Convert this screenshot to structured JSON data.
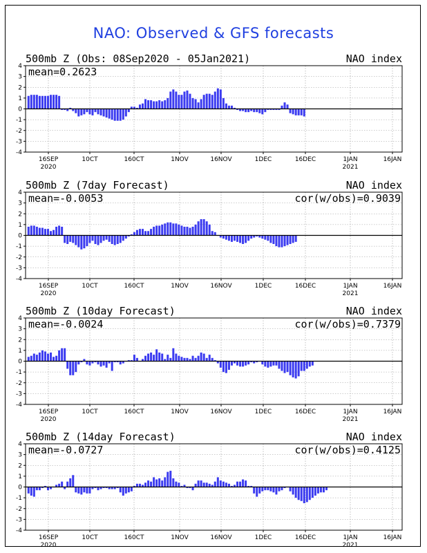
{
  "title": "NAO: Observed & GFS forecasts",
  "colors": {
    "bar": "#3b3bf0",
    "title": "#1f3fe0",
    "grid": "#9a9a9a",
    "axis": "#000000"
  },
  "chart_data": [
    {
      "type": "bar",
      "title": "500mb Z (Obs: 08Sep2020 - 05Jan2021)",
      "index_label": "NAO index",
      "mean_label": "mean=0.2623",
      "cor_label": "",
      "ylim": [
        -4,
        4
      ],
      "yticks": [
        "4",
        "3",
        "2",
        "1",
        "0",
        "-1",
        "-2",
        "-3",
        "-4"
      ],
      "xticks": [
        "16SEP",
        "10CT",
        "160CT",
        "1NOV",
        "16NOV",
        "1DEC",
        "16DEC",
        "1JAN",
        "16JAN"
      ],
      "xtick_years": {
        "0": "2020",
        "7": "2021"
      },
      "start_day": 0,
      "values": [
        1.2,
        1.3,
        1.3,
        1.3,
        1.2,
        1.2,
        1.2,
        1.2,
        1.3,
        1.3,
        1.3,
        1.2,
        -0.1,
        -0.1,
        -0.2,
        0.1,
        -0.2,
        -0.4,
        -0.7,
        -0.6,
        -0.5,
        -0.3,
        -0.5,
        -0.6,
        -0.3,
        -0.5,
        -0.6,
        -0.7,
        -0.8,
        -0.9,
        -1.0,
        -1.1,
        -1.1,
        -1.1,
        -1.0,
        -0.7,
        -0.3,
        0.2,
        0.2,
        0.1,
        0.4,
        0.5,
        0.9,
        0.8,
        0.8,
        0.7,
        0.7,
        0.8,
        0.7,
        0.8,
        1.0,
        1.6,
        1.8,
        1.6,
        1.3,
        1.3,
        1.6,
        1.7,
        1.4,
        1.0,
        0.9,
        0.6,
        0.9,
        1.3,
        1.4,
        1.4,
        1.3,
        1.6,
        1.9,
        1.8,
        1.0,
        0.5,
        0.3,
        0.3,
        0.1,
        -0.1,
        -0.2,
        -0.2,
        -0.3,
        -0.3,
        -0.2,
        -0.3,
        -0.3,
        -0.4,
        -0.5,
        -0.3,
        -0.1,
        -0.1,
        -0.1,
        -0.1,
        -0.1,
        0.3,
        0.6,
        0.4,
        -0.4,
        -0.5,
        -0.6,
        -0.6,
        -0.6,
        -0.7
      ]
    },
    {
      "type": "bar",
      "title": "500mb Z (7day Forecast)",
      "index_label": "NAO index",
      "mean_label": "mean=-0.0053",
      "cor_label": "cor(w/obs)=0.9039",
      "ylim": [
        -4,
        4
      ],
      "yticks": [
        "4",
        "3",
        "2",
        "1",
        "0",
        "-1",
        "-2",
        "-3",
        "-4"
      ],
      "xticks": [
        "16SEP",
        "10CT",
        "160CT",
        "1NOV",
        "16NOV",
        "1DEC",
        "16DEC",
        "1JAN",
        "16JAN"
      ],
      "xtick_years": {
        "0": "2020",
        "7": "2021"
      },
      "start_day": 0,
      "values": [
        0.8,
        0.9,
        0.9,
        0.8,
        0.7,
        0.7,
        0.6,
        0.6,
        0.4,
        0.5,
        0.8,
        0.9,
        0.8,
        -0.7,
        -0.8,
        -0.6,
        -0.7,
        -0.9,
        -1.1,
        -1.3,
        -1.2,
        -1.0,
        -0.7,
        -0.5,
        -0.8,
        -0.9,
        -0.7,
        -0.5,
        -0.4,
        -0.6,
        -0.8,
        -0.9,
        -0.8,
        -0.7,
        -0.5,
        -0.3,
        -0.1,
        0.1,
        0.3,
        0.5,
        0.6,
        0.6,
        0.4,
        0.4,
        0.6,
        0.8,
        0.9,
        0.9,
        1.0,
        1.1,
        1.2,
        1.2,
        1.1,
        1.1,
        1.0,
        0.9,
        0.8,
        0.8,
        0.7,
        0.8,
        1.0,
        1.3,
        1.5,
        1.5,
        1.3,
        1.0,
        0.4,
        0.3,
        0.0,
        -0.2,
        -0.3,
        -0.4,
        -0.5,
        -0.6,
        -0.5,
        -0.6,
        -0.7,
        -0.8,
        -0.7,
        -0.5,
        -0.3,
        -0.2,
        -0.1,
        -0.2,
        -0.3,
        -0.4,
        -0.5,
        -0.7,
        -0.8,
        -1.0,
        -1.1,
        -1.1,
        -1.0,
        -0.9,
        -0.8,
        -0.7,
        -0.6
      ]
    },
    {
      "type": "bar",
      "title": "500mb Z (10day Forecast)",
      "index_label": "NAO index",
      "mean_label": "mean=-0.0024",
      "cor_label": "cor(w/obs)=0.7379",
      "ylim": [
        -4,
        4
      ],
      "yticks": [
        "4",
        "3",
        "2",
        "1",
        "0",
        "-1",
        "-2",
        "-3",
        "-4"
      ],
      "xticks": [
        "16SEP",
        "10CT",
        "160CT",
        "1NOV",
        "16NOV",
        "1DEC",
        "16DEC",
        "1JAN",
        "16JAN"
      ],
      "xtick_years": {
        "0": "2020",
        "7": "2021"
      },
      "start_day": 0,
      "values": [
        0.4,
        0.5,
        0.7,
        0.6,
        0.8,
        1.0,
        0.9,
        0.7,
        0.8,
        0.4,
        0.5,
        1.0,
        1.2,
        1.2,
        -0.7,
        -1.3,
        -1.3,
        -1.0,
        -0.3,
        -0.1,
        0.2,
        -0.3,
        -0.4,
        -0.2,
        -0.1,
        -0.3,
        -0.5,
        -0.4,
        -0.6,
        -0.2,
        -0.9,
        -0.1,
        -0.1,
        -0.3,
        -0.2,
        0.0,
        0.1,
        0.1,
        0.6,
        0.3,
        0.0,
        0.2,
        0.5,
        0.7,
        0.8,
        0.6,
        1.1,
        0.8,
        0.7,
        0.2,
        0.6,
        0.3,
        1.2,
        0.7,
        0.5,
        0.4,
        0.3,
        0.3,
        0.2,
        0.5,
        0.3,
        0.5,
        0.8,
        0.7,
        0.3,
        0.6,
        0.3,
        0.1,
        -0.2,
        -0.6,
        -1.0,
        -1.1,
        -0.8,
        -0.4,
        -0.2,
        -0.4,
        -0.5,
        -0.5,
        -0.4,
        -0.3,
        -0.1,
        -0.2,
        -0.1,
        0.0,
        -0.3,
        -0.5,
        -0.6,
        -0.5,
        -0.4,
        -0.4,
        -0.7,
        -0.9,
        -1.1,
        -1.0,
        -1.3,
        -1.5,
        -1.6,
        -1.4,
        -0.9,
        -0.9,
        -0.7,
        -0.5,
        -0.4
      ]
    },
    {
      "type": "bar",
      "title": "500mb Z (14day Forecast)",
      "index_label": "NAO index",
      "mean_label": "mean=-0.0727",
      "cor_label": "cor(w/obs)=0.4125",
      "ylim": [
        -4,
        4
      ],
      "yticks": [
        "4",
        "3",
        "2",
        "1",
        "0",
        "-1",
        "-2",
        "-3",
        "-4"
      ],
      "xticks": [
        "16SEP",
        "10CT",
        "160CT",
        "1NOV",
        "16NOV",
        "1DEC",
        "16DEC",
        "1JAN",
        "16JAN"
      ],
      "xtick_years": {
        "0": "2020",
        "7": "2021"
      },
      "start_day": 0,
      "values": [
        -0.6,
        -0.8,
        -0.9,
        -0.3,
        -0.3,
        -0.1,
        0.1,
        -0.3,
        -0.2,
        0.0,
        0.2,
        0.3,
        0.5,
        -0.2,
        0.5,
        0.8,
        1.1,
        -0.5,
        -0.6,
        -0.7,
        -0.5,
        -0.6,
        -0.6,
        -0.2,
        -0.1,
        -0.3,
        -0.2,
        -0.1,
        -0.1,
        -0.2,
        -0.2,
        -0.2,
        -0.1,
        -0.5,
        -0.8,
        -0.6,
        -0.5,
        -0.4,
        0.1,
        0.3,
        0.3,
        0.2,
        0.4,
        0.6,
        0.5,
        0.9,
        0.7,
        0.8,
        0.6,
        0.9,
        1.4,
        1.5,
        0.8,
        0.5,
        0.4,
        0.1,
        0.2,
        -0.1,
        -0.1,
        -0.3,
        0.3,
        0.6,
        0.6,
        0.4,
        0.4,
        0.3,
        0.2,
        0.5,
        0.9,
        0.6,
        0.5,
        0.4,
        0.3,
        0.1,
        0.2,
        0.5,
        0.5,
        0.7,
        0.6,
        0.1,
        0.1,
        -0.6,
        -0.9,
        -0.6,
        -0.4,
        -0.3,
        -0.3,
        -0.4,
        -0.5,
        -0.7,
        -0.4,
        -0.3,
        -0.1,
        0.0,
        -0.4,
        -0.7,
        -1.0,
        -1.2,
        -1.3,
        -1.5,
        -1.4,
        -1.2,
        -1.0,
        -0.8,
        -0.6,
        -0.5,
        -0.5,
        -0.3
      ]
    }
  ]
}
